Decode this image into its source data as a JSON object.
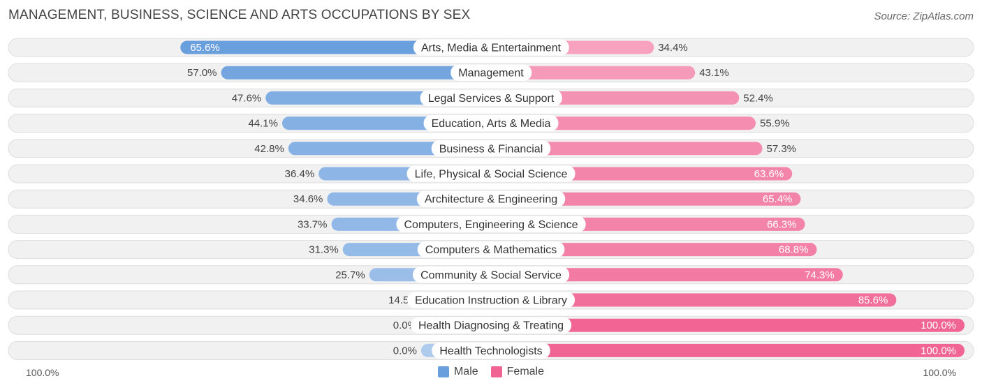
{
  "title": "MANAGEMENT, BUSINESS, SCIENCE AND ARTS OCCUPATIONS BY SEX",
  "source": "Source: ZipAtlas.com",
  "axis": {
    "left_label": "100.0%",
    "right_label": "100.0%"
  },
  "legend": {
    "male": "Male",
    "female": "Female"
  },
  "colors": {
    "male_strong": "#6a9fdd",
    "male_light": "#aecbee",
    "female_strong": "#f06594",
    "female_light": "#f7a8c2",
    "track": "#f1f1f1",
    "track_border": "#dddddd"
  },
  "chart_data": {
    "type": "bar",
    "orientation": "horizontal-diverging",
    "categories": [
      "Arts, Media & Entertainment",
      "Management",
      "Legal Services & Support",
      "Education, Arts & Media",
      "Business & Financial",
      "Life, Physical & Social Science",
      "Architecture & Engineering",
      "Computers, Engineering & Science",
      "Computers & Mathematics",
      "Community & Social Service",
      "Education Instruction & Library",
      "Health Diagnosing & Treating",
      "Health Technologists"
    ],
    "series": [
      {
        "name": "Male",
        "values": [
          65.6,
          57.0,
          47.6,
          44.1,
          42.8,
          36.4,
          34.6,
          33.7,
          31.3,
          25.7,
          14.5,
          0.0,
          0.0
        ],
        "labels": [
          "65.6%",
          "57.0%",
          "47.6%",
          "44.1%",
          "42.8%",
          "36.4%",
          "34.6%",
          "33.7%",
          "31.3%",
          "25.7%",
          "14.5%",
          "0.0%",
          "0.0%"
        ]
      },
      {
        "name": "Female",
        "values": [
          34.4,
          43.1,
          52.4,
          55.9,
          57.3,
          63.6,
          65.4,
          66.3,
          68.8,
          74.3,
          85.6,
          100.0,
          100.0
        ],
        "labels": [
          "34.4%",
          "43.1%",
          "52.4%",
          "55.9%",
          "57.3%",
          "63.6%",
          "65.4%",
          "66.3%",
          "68.8%",
          "74.3%",
          "85.6%",
          "100.0%",
          "100.0%"
        ]
      }
    ],
    "xlim": [
      0,
      100
    ],
    "legend_position": "bottom-center"
  }
}
